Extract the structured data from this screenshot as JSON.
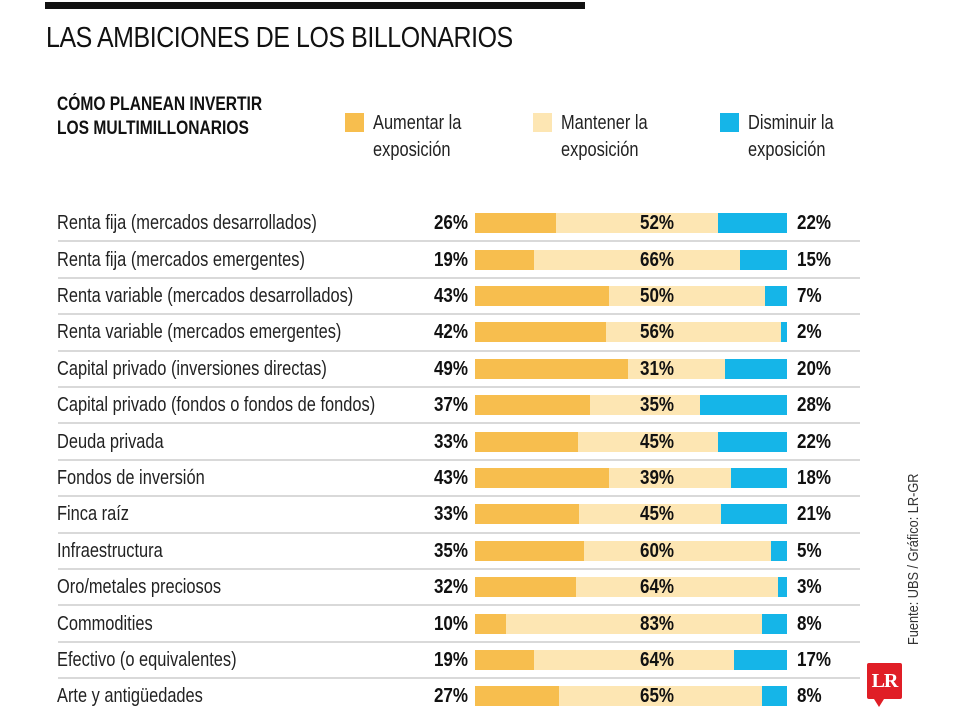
{
  "title": "LAS AMBICIONES DE LOS BILLONARIOS",
  "subtitle": "CÓMO PLANEAN INVERTIR LOS MULTIMILLONARIOS",
  "source": "Fuente: UBS / Gráfico: LR-GR",
  "logo_text": "LR",
  "legend": [
    {
      "label": "Aumentar la exposición",
      "color": "#F7BE4E"
    },
    {
      "label": "Mantener la exposición",
      "color": "#FDE6B3"
    },
    {
      "label": "Disminuir la exposición",
      "color": "#15B5E8"
    }
  ],
  "chart_data": {
    "type": "bar",
    "stacked": true,
    "orientation": "horizontal",
    "title": "LAS AMBICIONES DE LOS BILLONARIOS",
    "subtitle": "CÓMO PLANEAN INVERTIR LOS MULTIMILLONARIOS",
    "xlabel": "",
    "ylabel": "",
    "xlim": [
      0,
      100
    ],
    "unit": "%",
    "legend_position": "top",
    "categories": [
      "Renta fija (mercados desarrollados)",
      "Renta fija (mercados emergentes)",
      "Renta variable (mercados desarrollados)",
      "Renta variable (mercados emergentes)",
      "Capital privado (inversiones directas)",
      "Capital privado (fondos o fondos de fondos)",
      "Deuda privada",
      "Fondos de inversión",
      "Finca raíz",
      "Infraestructura",
      "Oro/metales preciosos",
      "Commodities",
      "Efectivo (o equivalentes)",
      "Arte y antigüedades"
    ],
    "series": [
      {
        "name": "Aumentar la exposición",
        "color": "#F7BE4E",
        "values": [
          26,
          19,
          43,
          42,
          49,
          37,
          33,
          43,
          33,
          35,
          32,
          10,
          19,
          27
        ]
      },
      {
        "name": "Mantener la exposición",
        "color": "#FDE6B3",
        "values": [
          52,
          66,
          50,
          56,
          31,
          35,
          45,
          39,
          45,
          60,
          64,
          83,
          64,
          65
        ]
      },
      {
        "name": "Disminuir la exposición",
        "color": "#15B5E8",
        "values": [
          22,
          15,
          7,
          2,
          20,
          28,
          22,
          18,
          21,
          5,
          3,
          8,
          17,
          8
        ]
      }
    ]
  }
}
